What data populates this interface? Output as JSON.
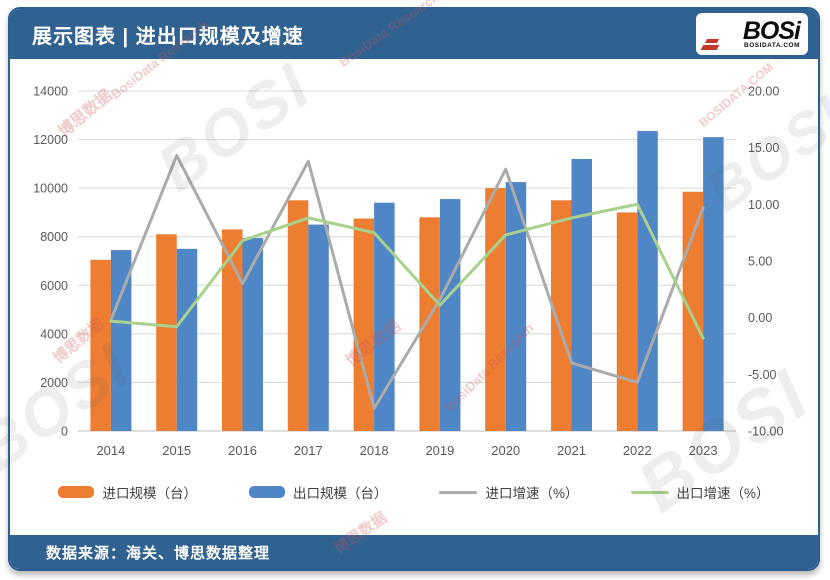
{
  "header": {
    "title": "展示图表 | 进出口规模及增速",
    "logo": {
      "text": "BOSi",
      "domain": "BOSIDATA.COM"
    }
  },
  "footer": {
    "source": "数据来源：海关、博思数据整理"
  },
  "watermarks": {
    "brand_cn": "博思数据",
    "brand_en": "BosiData Research",
    "site": "BOSIDATA.COM",
    "logo": "BOSI"
  },
  "colors": {
    "import_bar": "#ED7D31",
    "export_bar": "#4E86C6",
    "import_line": "#ABABAB",
    "export_line": "#A9D18E",
    "frame_blue": "#2F6191",
    "grid": "#D8D8D8",
    "tick_text": "#595959"
  },
  "chart_data": {
    "type": "bar",
    "subtype": "grouped bars with two growth-rate lines (combo chart)",
    "categories": [
      "2014",
      "2015",
      "2016",
      "2017",
      "2018",
      "2019",
      "2020",
      "2021",
      "2022",
      "2023"
    ],
    "series": [
      {
        "name": "进口规模（台）",
        "kind": "bar",
        "axis": "left",
        "color": "#ED7D31",
        "values": [
          7050,
          8100,
          8300,
          9500,
          8750,
          8800,
          10000,
          9500,
          9000,
          9850
        ]
      },
      {
        "name": "出口规模（台）",
        "kind": "bar",
        "axis": "left",
        "color": "#4E86C6",
        "values": [
          7450,
          7500,
          7950,
          8500,
          9400,
          9550,
          10250,
          11200,
          12350,
          12100
        ]
      },
      {
        "name": "进口增速（%）",
        "kind": "line",
        "axis": "right",
        "color": "#ABABAB",
        "values": [
          -0.2,
          14.3,
          3.0,
          13.8,
          -8.0,
          1.6,
          13.1,
          -4.0,
          -5.7,
          9.7
        ]
      },
      {
        "name": "出口增速（%）",
        "kind": "line",
        "axis": "right",
        "color": "#A9D18E",
        "values": [
          -0.3,
          -0.8,
          6.8,
          8.8,
          7.5,
          1.1,
          7.3,
          8.8,
          10.0,
          -1.8
        ]
      }
    ],
    "left_axis": {
      "min": 0,
      "max": 14000,
      "step": 2000,
      "ticks": [
        "0",
        "2000",
        "4000",
        "6000",
        "8000",
        "10000",
        "12000",
        "14000"
      ]
    },
    "right_axis": {
      "min": -10,
      "max": 20,
      "step": 5,
      "ticks": [
        "-10.00",
        "-5.00",
        "0.00",
        "5.00",
        "10.00",
        "15.00",
        "20.00"
      ]
    },
    "grid": true,
    "legend_position": "bottom",
    "title": "进出口规模及增速"
  }
}
